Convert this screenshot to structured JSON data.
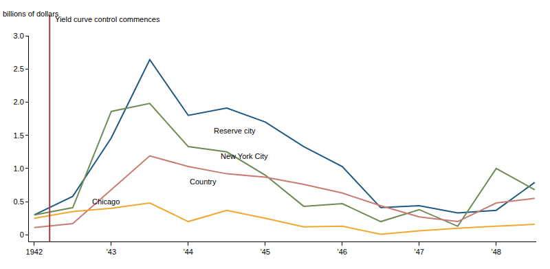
{
  "chart_data": {
    "type": "line",
    "ylabel": "billions of dollars",
    "x": [
      1942,
      1942.5,
      1943,
      1943.5,
      1944,
      1944.5,
      1945,
      1945.5,
      1946,
      1946.5,
      1947,
      1947.5,
      1948,
      1948.5
    ],
    "series": [
      {
        "name": "Reserve city",
        "color": "#1f5a82",
        "values": [
          0.3,
          0.58,
          1.46,
          2.64,
          1.8,
          1.91,
          1.7,
          1.33,
          1.03,
          0.41,
          0.44,
          0.33,
          0.37,
          0.79
        ]
      },
      {
        "name": "New York City",
        "color": "#6f8a55",
        "values": [
          0.3,
          0.41,
          1.86,
          1.98,
          1.33,
          1.25,
          0.9,
          0.43,
          0.47,
          0.2,
          0.38,
          0.13,
          1.0,
          0.68
        ]
      },
      {
        "name": "Country",
        "color": "#c97b73",
        "values": [
          0.11,
          0.17,
          0.68,
          1.19,
          1.03,
          0.92,
          0.87,
          0.76,
          0.63,
          0.44,
          0.27,
          0.2,
          0.48,
          0.55
        ]
      },
      {
        "name": "Chicago",
        "color": "#f0a830",
        "values": [
          0.25,
          0.35,
          0.4,
          0.48,
          0.2,
          0.37,
          0.25,
          0.12,
          0.13,
          0.01,
          0.06,
          0.1,
          0.13,
          0.16
        ]
      }
    ],
    "annotations": [
      {
        "x": 1942.2,
        "text": "Yield curve control commences",
        "color": "#a33a3a"
      }
    ],
    "xlim": [
      1941.93,
      1948.52
    ],
    "xticks": [
      1942,
      {
        "value": 1943,
        "label": "'43"
      },
      {
        "value": 1944,
        "label": "'44"
      },
      {
        "value": 1945,
        "label": "'45"
      },
      {
        "value": 1946,
        "label": "'46"
      },
      {
        "value": 1947,
        "label": "'47"
      },
      {
        "value": 1948,
        "label": "'48"
      }
    ],
    "ylim": [
      -0.1,
      3.0
    ],
    "yticks": [
      0,
      0.5,
      {
        "value": 1,
        "label": "1.0"
      },
      1.5,
      {
        "value": 2,
        "label": "2.0"
      },
      2.5,
      {
        "value": 3,
        "label": "3.0"
      }
    ],
    "grid": false
  }
}
